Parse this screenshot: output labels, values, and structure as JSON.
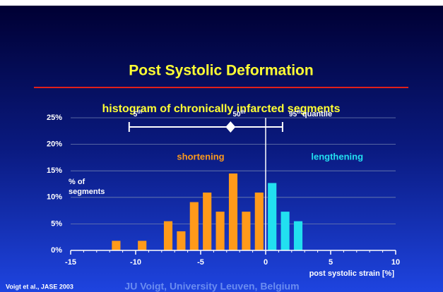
{
  "chart_data": {
    "type": "histogram",
    "title": "Post Systolic Deformation",
    "subtitle": "histogram of chronically infarcted segments",
    "bins": [
      -12,
      -11,
      -10,
      -9,
      -8,
      -7,
      -6,
      -5,
      -4,
      -3,
      -2,
      -1,
      0,
      1,
      2,
      3
    ],
    "values": [
      1.8,
      0,
      1.8,
      0,
      5.5,
      3.6,
      9.1,
      10.9,
      7.3,
      14.5,
      7.3,
      10.9,
      12.7,
      7.3,
      5.5
    ],
    "colors": [
      "#ff9a1a",
      "#ff9a1a",
      "#ff9a1a",
      "#ff9a1a",
      "#ff9a1a",
      "#ff9a1a",
      "#ff9a1a",
      "#ff9a1a",
      "#ff9a1a",
      "#ff9a1a",
      "#ff9a1a",
      "#ff9a1a",
      "#22e0f0",
      "#22e0f0",
      "#22e0f0"
    ],
    "xlim": [
      -15,
      10
    ],
    "xticks": [
      -15,
      -10,
      -5,
      0,
      5,
      10
    ],
    "xminorticks": [
      -15,
      -14,
      -13,
      -12,
      -11,
      -10,
      -9,
      -8,
      -7,
      -6,
      -5,
      -4,
      -3,
      -2,
      -1,
      0,
      1,
      2,
      3,
      4,
      5,
      6,
      7,
      8,
      9,
      10
    ],
    "ylim": [
      0,
      25
    ],
    "yticks": [
      {
        "value": 0,
        "label": "0%"
      },
      {
        "value": 5,
        "label": "5%"
      },
      {
        "value": 10,
        "label": "10%"
      },
      {
        "value": 15,
        "label": "15%"
      },
      {
        "value": 20,
        "label": "20%"
      },
      {
        "value": 25,
        "label": "25%"
      }
    ],
    "grid": true,
    "ylabel": [
      "% of",
      "segments"
    ],
    "xlabel": "post systolic strain [%]",
    "reference_x": 0,
    "quantiles": [
      {
        "value": -10.5,
        "label": "5",
        "suffix": "th"
      },
      {
        "value": -2.7,
        "label": "50",
        "suffix": "th"
      },
      {
        "value": 1.3,
        "label": "95",
        "suffix": "th"
      }
    ],
    "quantile_note": "quantile",
    "annotations": [
      {
        "text": "shortening",
        "x": -5,
        "color": "#ff9a1a"
      },
      {
        "text": "lengthening",
        "x": 5.5,
        "color": "#22e0f0"
      }
    ],
    "source": "Voigt et al., JASE 2003",
    "footer": "JU Voigt, University Leuven, Belgium"
  }
}
